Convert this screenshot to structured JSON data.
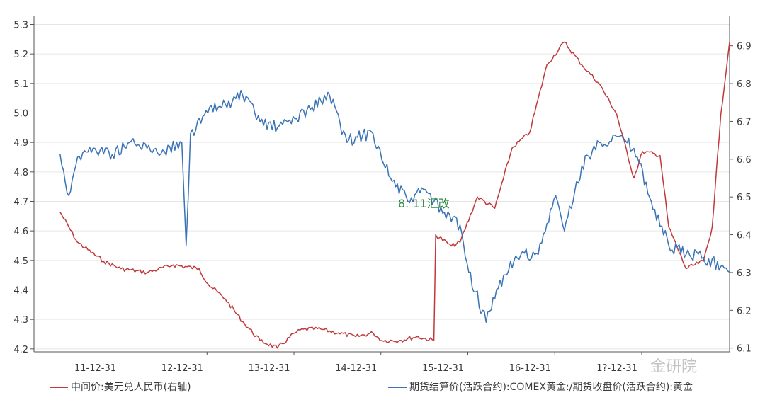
{
  "chart_data": {
    "type": "line",
    "x_ticks": [
      "11-12-31",
      "12-12-31",
      "13-12-31",
      "14-12-31",
      "15-12-31",
      "16-12-31",
      "1?-12-31"
    ],
    "left_axis": {
      "ticks": [
        "4.2",
        "4.3",
        "4.4",
        "4.5",
        "4.6",
        "4.7",
        "4.8",
        "4.9",
        "5.0",
        "5.1",
        "5.2",
        "5.3"
      ],
      "range": [
        4.19,
        5.33
      ]
    },
    "right_axis": {
      "ticks": [
        "6.1",
        "6.2",
        "6.3",
        "6.4",
        "6.5",
        "6.6",
        "6.7",
        "6.8",
        "6.9"
      ],
      "range": [
        6.09,
        6.98
      ]
    },
    "annotation": "8. 11汇改",
    "watermark": "金研院",
    "series": [
      {
        "name": "中间价:美元兑人民币(右轴)",
        "color": "#c0393b",
        "axis": "right",
        "x": [
          2011.3,
          2011.5,
          2011.8,
          2012.0,
          2012.3,
          2012.6,
          2012.9,
          2013.0,
          2013.2,
          2013.4,
          2013.6,
          2013.8,
          2014.0,
          2014.1,
          2014.3,
          2014.5,
          2014.7,
          2014.9,
          2015.0,
          2015.2,
          2015.4,
          2015.6,
          2015.62,
          2015.8,
          2015.9,
          2016.1,
          2016.3,
          2016.4,
          2016.5,
          2016.7,
          2016.9,
          2017.1,
          2017.3,
          2017.5,
          2017.7,
          2017.9,
          2018.0,
          2018.2,
          2018.3,
          2018.5,
          2018.7,
          2018.8,
          2018.9,
          2019.0
        ],
        "values": [
          6.46,
          6.38,
          6.33,
          6.31,
          6.3,
          6.32,
          6.31,
          6.27,
          6.23,
          6.17,
          6.12,
          6.1,
          6.14,
          6.15,
          6.15,
          6.14,
          6.13,
          6.14,
          6.12,
          6.12,
          6.13,
          6.12,
          6.4,
          6.37,
          6.38,
          6.5,
          6.47,
          6.55,
          6.63,
          6.67,
          6.85,
          6.91,
          6.85,
          6.8,
          6.72,
          6.55,
          6.62,
          6.61,
          6.42,
          6.31,
          6.33,
          6.42,
          6.72,
          6.91
        ]
      },
      {
        "name": "期货结算价(活跃合约):COMEX黄金:/期货收盘价(活跃合约):黄金",
        "color": "#3a73b6",
        "axis": "left",
        "x": [
          2011.3,
          2011.4,
          2011.5,
          2011.7,
          2011.9,
          2012.1,
          2012.3,
          2012.5,
          2012.7,
          2012.75,
          2012.8,
          2013.0,
          2013.2,
          2013.4,
          2013.6,
          2013.8,
          2014.0,
          2014.2,
          2014.4,
          2014.6,
          2014.7,
          2014.9,
          2015.1,
          2015.3,
          2015.5,
          2015.7,
          2015.9,
          2016.0,
          2016.2,
          2016.4,
          2016.6,
          2016.8,
          2017.0,
          2017.1,
          2017.3,
          2017.5,
          2017.7,
          2017.9,
          2018.1,
          2018.3,
          2018.5,
          2018.7,
          2018.9,
          2019.0
        ],
        "values": [
          4.86,
          4.72,
          4.85,
          4.88,
          4.86,
          4.9,
          4.88,
          4.87,
          4.9,
          4.55,
          4.93,
          5.0,
          5.03,
          5.06,
          4.97,
          4.95,
          4.98,
          5.02,
          5.06,
          4.9,
          4.92,
          4.93,
          4.78,
          4.7,
          4.74,
          4.66,
          4.62,
          4.46,
          4.29,
          4.45,
          4.52,
          4.52,
          4.72,
          4.6,
          4.82,
          4.9,
          4.92,
          4.88,
          4.7,
          4.55,
          4.52,
          4.51,
          4.48,
          4.46
        ]
      }
    ]
  }
}
